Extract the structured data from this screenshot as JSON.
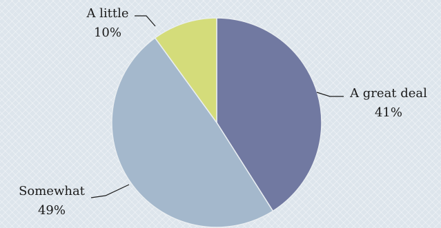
{
  "chart_data": {
    "type": "pie",
    "slices": [
      {
        "label": "A great deal",
        "percent_label": "41%",
        "value": 41,
        "color": "#7179a1"
      },
      {
        "label": "Somewhat",
        "percent_label": "49%",
        "value": 49,
        "color": "#a4b8cc"
      },
      {
        "label": "A little",
        "percent_label": "10%",
        "value": 10,
        "color": "#d4dc7a"
      }
    ],
    "start_angle": "12 o'clock",
    "direction": "clockwise",
    "legend": "none",
    "slice_border_color": "#e9eef2"
  }
}
